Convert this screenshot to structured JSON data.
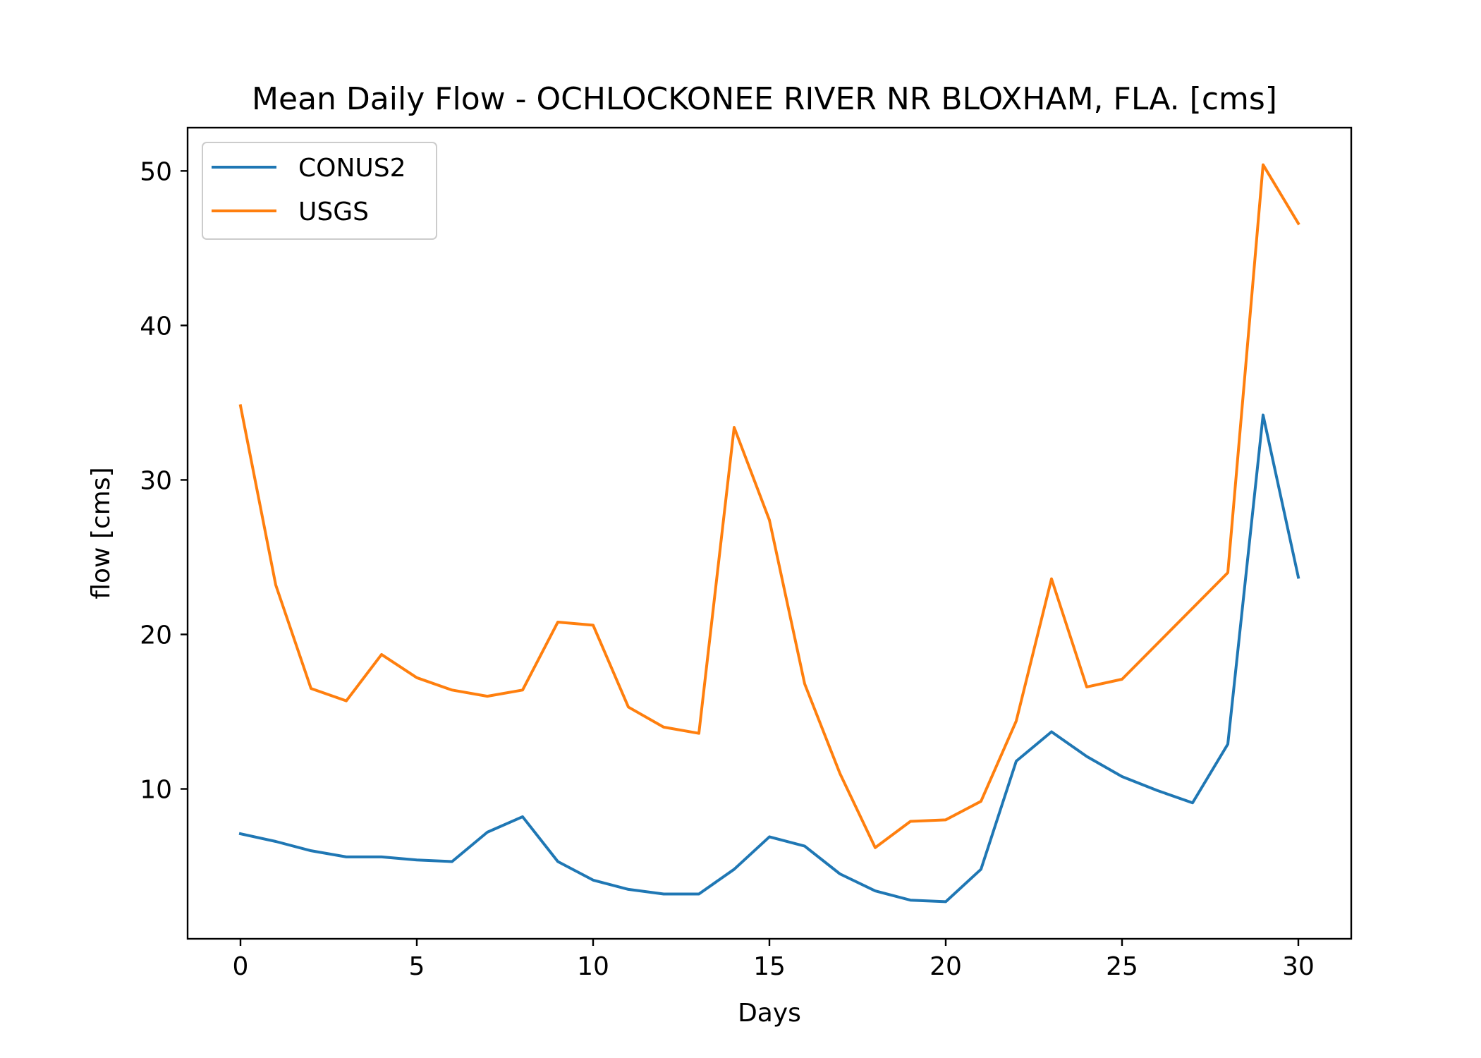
{
  "chart_data": {
    "type": "line",
    "title": "Mean Daily Flow - OCHLOCKONEE RIVER NR BLOXHAM, FLA. [cms]",
    "xlabel": "Days",
    "ylabel": "flow [cms]",
    "xlim": [
      -1.5,
      31.5
    ],
    "ylim": [
      0.3,
      52.8
    ],
    "xticks": [
      0,
      5,
      10,
      15,
      20,
      25,
      30
    ],
    "yticks": [
      10,
      20,
      30,
      40,
      50
    ],
    "x": [
      0,
      1,
      2,
      3,
      4,
      5,
      6,
      7,
      8,
      9,
      10,
      11,
      12,
      13,
      14,
      15,
      16,
      17,
      18,
      19,
      20,
      21,
      22,
      23,
      24,
      25,
      26,
      27,
      28,
      29,
      30
    ],
    "legend": "top-left",
    "grid": false,
    "series": [
      {
        "name": "CONUS2",
        "color": "#1f77b4",
        "values": [
          7.1,
          6.6,
          6.0,
          5.6,
          5.6,
          5.4,
          5.3,
          7.2,
          8.2,
          5.3,
          4.1,
          3.5,
          3.2,
          3.2,
          4.8,
          6.9,
          6.3,
          4.5,
          3.4,
          2.8,
          2.7,
          4.8,
          11.8,
          13.7,
          12.1,
          10.8,
          9.9,
          9.1,
          12.9,
          34.2,
          23.7
        ]
      },
      {
        "name": "USGS",
        "color": "#ff7f0e",
        "values": [
          34.8,
          23.2,
          16.5,
          15.7,
          18.7,
          17.2,
          16.4,
          16.0,
          16.4,
          20.8,
          20.6,
          15.3,
          14.0,
          13.6,
          33.4,
          27.4,
          16.8,
          11.0,
          6.2,
          7.9,
          8.0,
          9.2,
          14.4,
          23.6,
          16.6,
          17.1,
          19.4,
          21.7,
          24.0,
          50.4,
          46.6
        ]
      }
    ]
  }
}
